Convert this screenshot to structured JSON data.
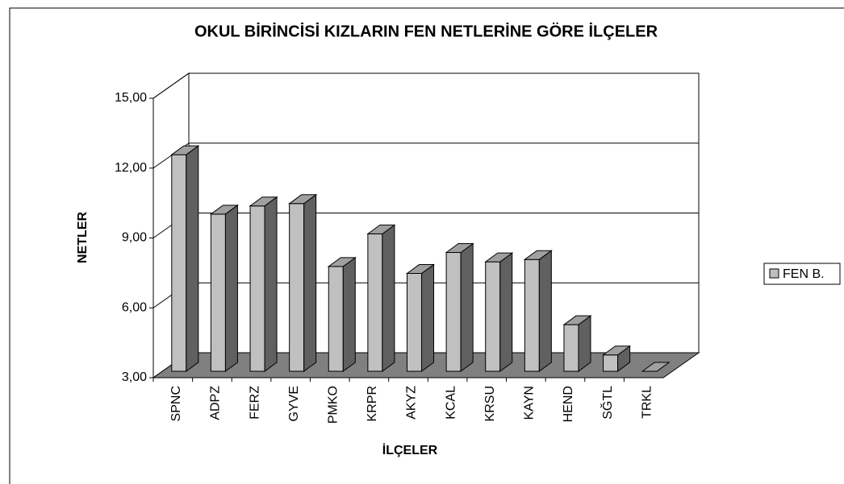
{
  "chart_data": {
    "type": "bar3d",
    "title": "OKUL BİRİNCİSİ KIZLARIN FEN NETLERİNE GÖRE İLÇELER",
    "y_label": "NETLER",
    "x_label": "İLÇELER",
    "categories": [
      "SPNC",
      "ADPZ",
      "FERZ",
      "GYVE",
      "PMKO",
      "KRPR",
      "AKYZ",
      "KCAL",
      "KRSU",
      "KAYN",
      "HEND",
      "SĞTL",
      "TRKL"
    ],
    "series": [
      {
        "name": "FEN B.",
        "color": "#c0c0c0",
        "values": [
          12.3,
          9.75,
          10.1,
          10.2,
          7.5,
          8.9,
          7.2,
          8.1,
          7.7,
          7.8,
          5.0,
          3.7,
          3.0
        ]
      }
    ],
    "ylim": [
      3,
      15
    ],
    "yticks": [
      {
        "value": 3,
        "label": "3,00"
      },
      {
        "value": 6,
        "label": "6,00"
      },
      {
        "value": 9,
        "label": "9,00"
      },
      {
        "value": 12,
        "label": "12,00"
      },
      {
        "value": 15,
        "label": "15,00"
      }
    ],
    "grid": true,
    "legend": "right"
  }
}
